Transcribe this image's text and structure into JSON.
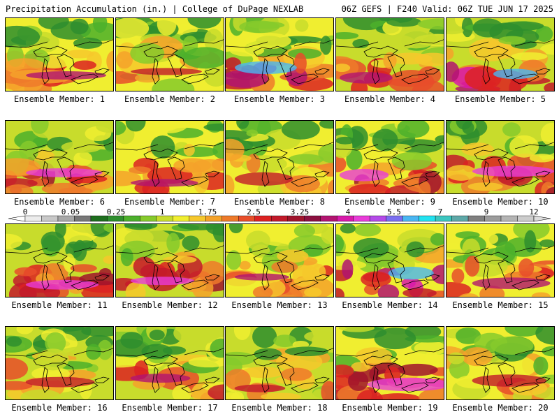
{
  "header": {
    "left": "Precipitation Accumulation (in.) | College of DuPage NEXLAB",
    "right": "06Z GEFS | F240 Valid: 06Z TUE JUN 17 2025"
  },
  "panel_prefix": "Ensemble Member: ",
  "members": [
    {
      "id": "1",
      "intensity": 2
    },
    {
      "id": "2",
      "intensity": 1
    },
    {
      "id": "3",
      "intensity": 4
    },
    {
      "id": "4",
      "intensity": 2
    },
    {
      "id": "5",
      "intensity": 4
    },
    {
      "id": "6",
      "intensity": 3
    },
    {
      "id": "7",
      "intensity": 2
    },
    {
      "id": "8",
      "intensity": 1
    },
    {
      "id": "9",
      "intensity": 3
    },
    {
      "id": "10",
      "intensity": 3
    },
    {
      "id": "11",
      "intensity": 3
    },
    {
      "id": "12",
      "intensity": 3
    },
    {
      "id": "13",
      "intensity": 2
    },
    {
      "id": "14",
      "intensity": 4
    },
    {
      "id": "15",
      "intensity": 2
    },
    {
      "id": "16",
      "intensity": 1
    },
    {
      "id": "17",
      "intensity": 2
    },
    {
      "id": "18",
      "intensity": 1
    },
    {
      "id": "19",
      "intensity": 3
    },
    {
      "id": "20",
      "intensity": 1
    }
  ],
  "legend": {
    "ticks": [
      "0",
      "0.05",
      "0.25",
      "1",
      "1.75",
      "2.5",
      "3.25",
      "4",
      "5.5",
      "7",
      "9",
      "12"
    ],
    "colors": [
      "#ececec",
      "#c8c8c8",
      "#a8a8a8",
      "#787878",
      "#1e6e1e",
      "#2e8e2e",
      "#4cb02c",
      "#86ca2c",
      "#c8dc2c",
      "#f0ee30",
      "#f6c82c",
      "#f4a22a",
      "#ee7a2a",
      "#e84e2a",
      "#dc2222",
      "#c21a2a",
      "#a0142c",
      "#8c1040",
      "#b21470",
      "#d81aaa",
      "#e83cd8",
      "#b44ae8",
      "#7a6ef0",
      "#4ab6f2",
      "#22e2f0",
      "#3cc6c0",
      "#5ea8a8",
      "#808080",
      "#9c9c9c",
      "#b4b4b4",
      "#cccccc"
    ]
  }
}
